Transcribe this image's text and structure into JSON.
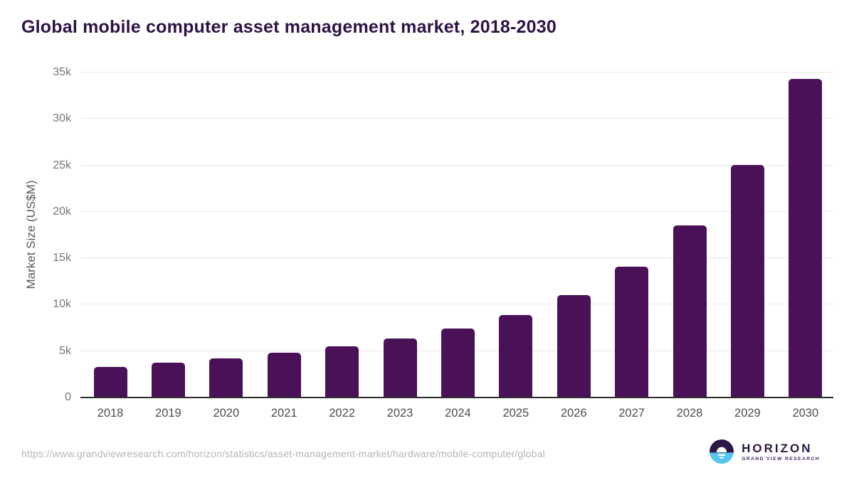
{
  "chart_data": {
    "type": "bar",
    "title": "Global mobile computer asset management market, 2018-2030",
    "categories": [
      "2018",
      "2019",
      "2020",
      "2021",
      "2022",
      "2023",
      "2024",
      "2025",
      "2026",
      "2027",
      "2028",
      "2029",
      "2030"
    ],
    "values": [
      3300,
      3750,
      4250,
      4800,
      5500,
      6350,
      7400,
      8900,
      11050,
      14100,
      18500,
      25050,
      34300
    ],
    "xlabel": "",
    "ylabel": "Market Size (US$M)",
    "ylim": [
      0,
      35000
    ],
    "yticks": [
      0,
      5000,
      10000,
      15000,
      20000,
      25000,
      30000,
      35000
    ],
    "ytick_labels": [
      "0",
      "5k",
      "10k",
      "15k",
      "20k",
      "25k",
      "30k",
      "35k"
    ],
    "grid": true,
    "legend": "none",
    "bar_corner_radius_px": 5
  },
  "colors": {
    "bar": "#4a1158",
    "title": "#2e1245",
    "grid": "#e8e8e8",
    "axis": "#2d2d2d",
    "ytick": "#767676",
    "xtick": "#4d4d4d",
    "url": "#b5b5b5",
    "logo_dark": "#2c1745",
    "logo_blue": "#56c5f2"
  },
  "footer": {
    "source_url": "https://www.grandviewresearch.com/horizon/statistics/asset-management-market/hardware/mobile-computer/global",
    "logo_title": "HORIZON",
    "logo_subtitle": "GRAND VIEW RESEARCH"
  }
}
